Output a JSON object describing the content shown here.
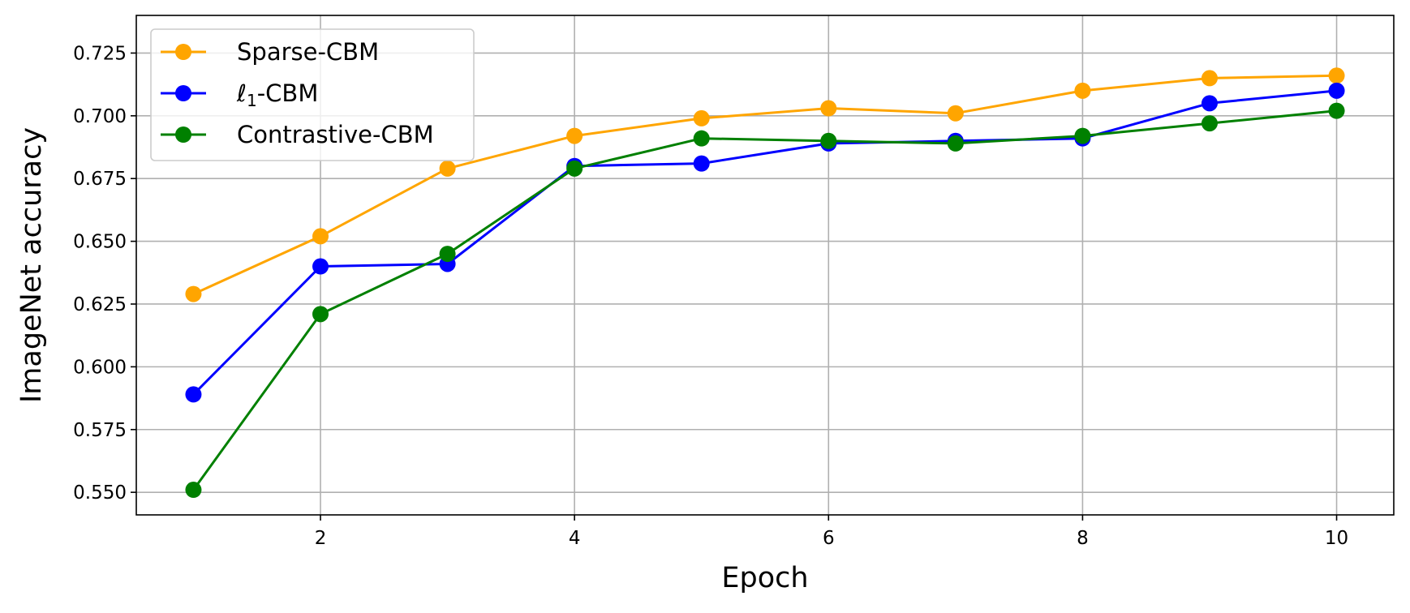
{
  "chart_data": {
    "type": "line",
    "title": "",
    "xlabel": "Epoch",
    "ylabel": "ImageNet accuracy",
    "xlim": [
      0.55,
      10.45
    ],
    "ylim": [
      0.541,
      0.74
    ],
    "xticks": [
      2,
      4,
      6,
      8,
      10
    ],
    "xtick_labels": [
      "2",
      "4",
      "6",
      "8",
      "10"
    ],
    "yticks": [
      0.55,
      0.575,
      0.6,
      0.625,
      0.65,
      0.675,
      0.7,
      0.725
    ],
    "ytick_labels": [
      "0.550",
      "0.575",
      "0.600",
      "0.625",
      "0.650",
      "0.675",
      "0.700",
      "0.725"
    ],
    "grid": true,
    "legend_position": "top-left",
    "x": [
      1,
      2,
      3,
      4,
      5,
      6,
      7,
      8,
      9,
      10
    ],
    "series": [
      {
        "name": "Sparse-CBM",
        "color": "#ffa500",
        "values": [
          0.629,
          0.652,
          0.679,
          0.692,
          0.699,
          0.703,
          0.701,
          0.71,
          0.715,
          0.716
        ]
      },
      {
        "name": "ℓ1-CBM",
        "legend_main": "ℓ",
        "legend_sub": "1",
        "legend_rest": "-CBM",
        "color": "#0000ff",
        "values": [
          0.589,
          0.64,
          0.641,
          0.68,
          0.681,
          0.689,
          0.69,
          0.691,
          0.705,
          0.71
        ]
      },
      {
        "name": "Contrastive-CBM",
        "color": "#008000",
        "values": [
          0.551,
          0.621,
          0.645,
          0.679,
          0.691,
          0.69,
          0.689,
          0.692,
          0.697,
          0.702
        ]
      }
    ]
  }
}
